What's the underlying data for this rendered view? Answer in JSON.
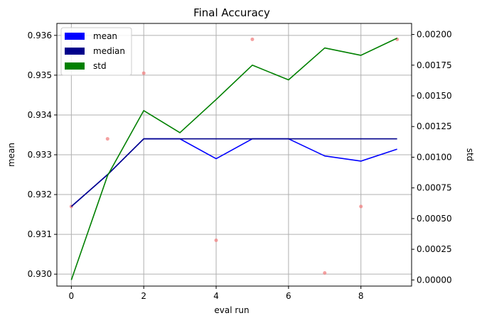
{
  "chart_data": {
    "type": "line",
    "title": "Final Accuracy",
    "xlabel": "eval run",
    "ylabel": "mean",
    "y2label": "std",
    "x": [
      0,
      1,
      2,
      3,
      4,
      5,
      6,
      7,
      8,
      9
    ],
    "xlim": [
      -0.4,
      9.4
    ],
    "ylim": [
      0.9297,
      0.9363
    ],
    "y2lim": [
      -5e-05,
      0.00209
    ],
    "x_ticks": [
      "0",
      "2",
      "4",
      "6",
      "8"
    ],
    "y_ticks": [
      "0.930",
      "0.931",
      "0.932",
      "0.933",
      "0.934",
      "0.935",
      "0.936"
    ],
    "y2_ticks": [
      "0.00000",
      "0.00025",
      "0.00050",
      "0.00075",
      "0.00100",
      "0.00125",
      "0.00150",
      "0.00175",
      "0.00200"
    ],
    "grid": true,
    "legend_position": "top-left",
    "series": [
      {
        "name": "mean",
        "axis": "left",
        "color": "#0000ff",
        "values": [
          0.9317,
          0.9325,
          0.9334,
          0.9334,
          0.9329,
          0.9334,
          0.9334,
          0.93297,
          0.93284,
          0.93314
        ]
      },
      {
        "name": "median",
        "axis": "left",
        "color": "#00008b",
        "values": [
          0.9317,
          0.9325,
          0.9334,
          0.9334,
          0.9334,
          0.9334,
          0.9334,
          0.9334,
          0.9334,
          0.9334
        ]
      },
      {
        "name": "std",
        "axis": "right",
        "color": "#008000",
        "values": [
          0.0,
          0.00085,
          0.00138,
          0.0012,
          0.00147,
          0.00175,
          0.00163,
          0.00189,
          0.00183,
          0.00197
        ]
      }
    ],
    "scatter": {
      "color": "#f08080",
      "points": [
        [
          0,
          0.9317
        ],
        [
          1,
          0.9334
        ],
        [
          2,
          0.93505
        ],
        [
          4,
          0.93085
        ],
        [
          5,
          0.9359
        ],
        [
          7,
          0.93003
        ],
        [
          8,
          0.9317
        ],
        [
          9,
          0.9359
        ]
      ]
    }
  }
}
